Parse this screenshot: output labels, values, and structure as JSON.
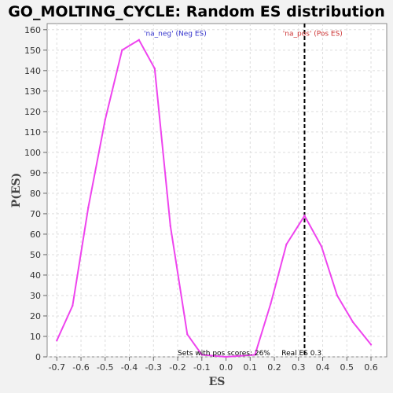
{
  "chart_data": {
    "type": "line",
    "title": "GO_MOLTING_CYCLE: Random ES distribution",
    "xlabel": "ES",
    "ylabel": "P(ES)",
    "xlim": [
      -0.74,
      0.665
    ],
    "ylim": [
      0,
      163
    ],
    "x_ticks": [
      "-0.7",
      "-0.6",
      "-0.5",
      "-0.4",
      "-0.3",
      "-0.2",
      "-0.1",
      "0.0",
      "0.1",
      "0.2",
      "0.3",
      "0.4",
      "0.5",
      "0.6"
    ],
    "x_tick_values": [
      -0.7,
      -0.6,
      -0.5,
      -0.4,
      -0.3,
      -0.2,
      -0.1,
      0.0,
      0.1,
      0.2,
      0.3,
      0.4,
      0.5,
      0.6
    ],
    "y_ticks": [
      "0",
      "10",
      "20",
      "30",
      "40",
      "50",
      "60",
      "70",
      "80",
      "90",
      "100",
      "110",
      "120",
      "130",
      "140",
      "150",
      "160"
    ],
    "y_tick_values": [
      0,
      10,
      20,
      30,
      40,
      50,
      60,
      70,
      80,
      90,
      100,
      110,
      120,
      130,
      140,
      150,
      160
    ],
    "grid": true,
    "line_color": "#ee44ee",
    "series": [
      {
        "x": [
          -0.7,
          -0.635,
          -0.57,
          -0.5,
          -0.43,
          -0.36,
          -0.295,
          -0.23,
          -0.16,
          -0.1,
          0.0,
          0.12,
          0.185,
          0.25,
          0.325,
          0.395,
          0.46,
          0.525,
          0.6
        ],
        "values": [
          8,
          25,
          73,
          116,
          150,
          155,
          141,
          64,
          11,
          1,
          0,
          1,
          26,
          55,
          69,
          54,
          30,
          17,
          6
        ]
      }
    ],
    "annotations": [
      {
        "text": "'na_neg' (Neg ES)",
        "x": -0.34,
        "y": 157,
        "color": "#3333cc"
      },
      {
        "text": "'na_pos' (Pos ES)",
        "x": 0.235,
        "y": 157,
        "color": "#cc3333"
      },
      {
        "text": "Sets with pos scores: 26%",
        "x": -0.2,
        "y": 0.8,
        "color": "#000000"
      },
      {
        "text": "Real ES 0.3",
        "x": 0.23,
        "y": 0.8,
        "color": "#000000"
      }
    ],
    "real_es_value": 0.325
  }
}
